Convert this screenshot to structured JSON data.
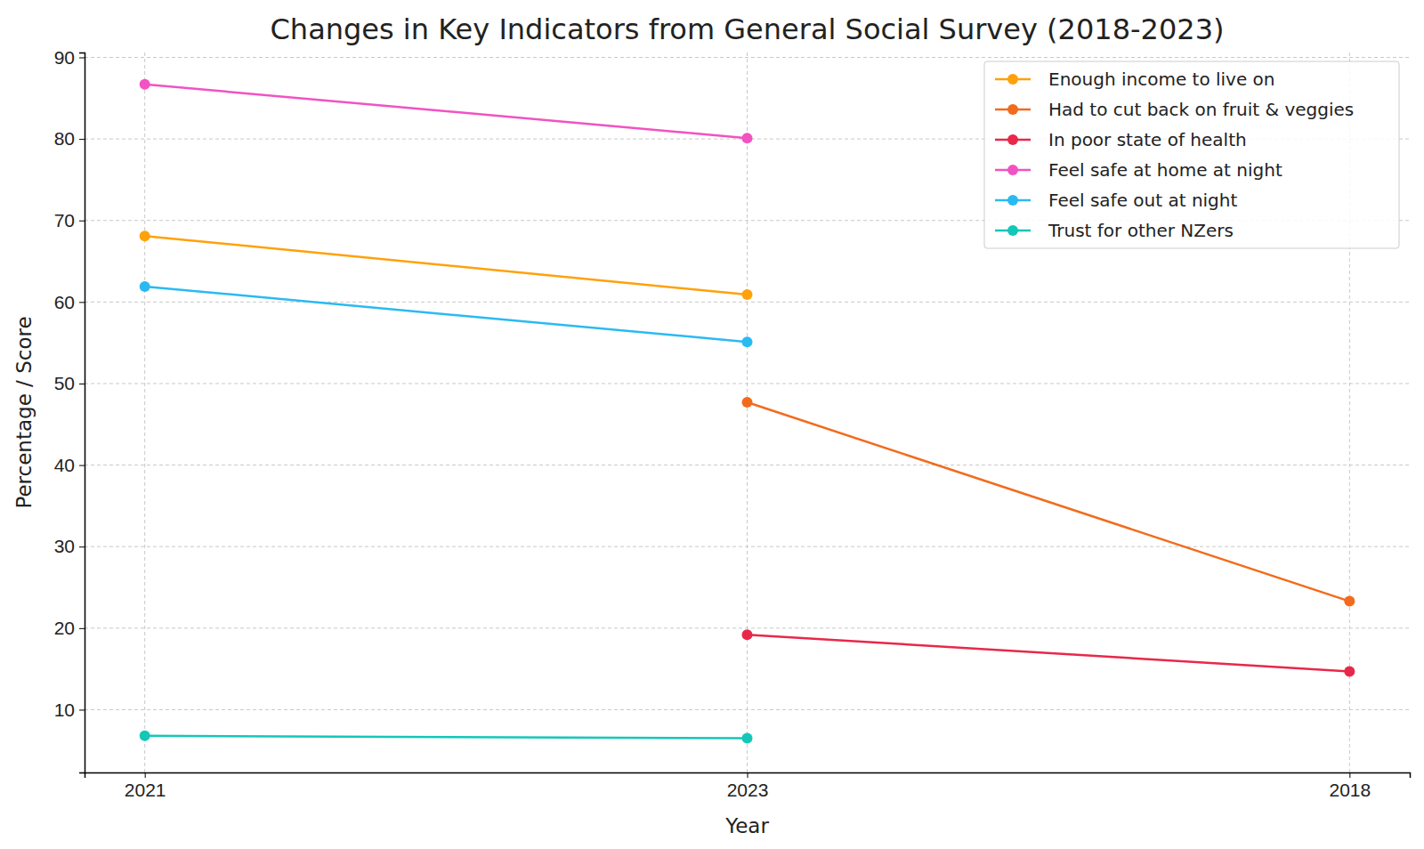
{
  "chart_data": {
    "type": "line",
    "title": "Changes in Key Indicators from General Social Survey (2018-2023)",
    "x_label": "Year",
    "y_label": "Percentage / Score",
    "categories": [
      "2021",
      "2023",
      "2018"
    ],
    "series": [
      {
        "name": "Enough income to live on",
        "color": "#ffa10a",
        "values": [
          68.1,
          60.9,
          null
        ]
      },
      {
        "name": "Had to cut back on fruit & veggies",
        "color": "#f26b1d",
        "values": [
          null,
          47.7,
          23.3
        ]
      },
      {
        "name": "In poor state of health",
        "color": "#e8284a",
        "values": [
          null,
          19.2,
          14.7
        ]
      },
      {
        "name": "Feel safe at home at night",
        "color": "#f252c2",
        "values": [
          86.7,
          80.1,
          null
        ]
      },
      {
        "name": "Feel safe out at night",
        "color": "#2abaf2",
        "values": [
          61.9,
          55.1,
          null
        ]
      },
      {
        "name": "Trust for other NZers",
        "color": "#14c7b8",
        "values": [
          6.8,
          6.5,
          null
        ]
      }
    ],
    "ylim": [
      2.3,
      90.6
    ],
    "yticks": [
      10,
      20,
      30,
      40,
      50,
      60,
      70,
      80,
      90
    ],
    "grid": true,
    "legend": "upper right",
    "marker": "circle"
  }
}
